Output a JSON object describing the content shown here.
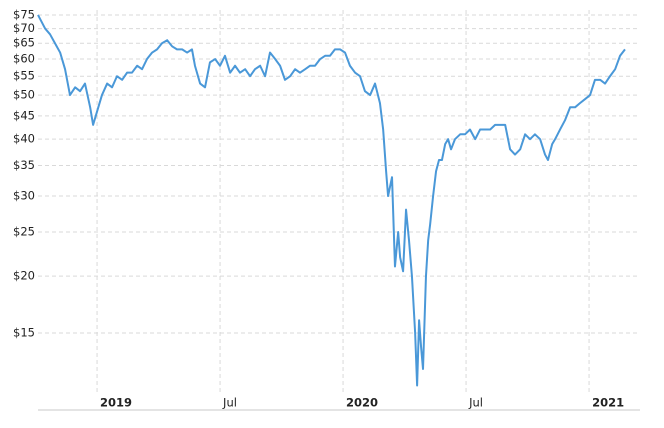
{
  "chart_data": {
    "type": "line",
    "yscale": "log",
    "grid": true,
    "color": "#4a98d8",
    "xlim": [
      2018.76,
      2021.207
    ],
    "xticks": [
      2019,
      {
        "value": 2019.5,
        "label": "Jul"
      },
      2020,
      {
        "value": 2020.5,
        "label": "Jul"
      },
      2021
    ],
    "ylim": [
      10.42,
      76.9
    ],
    "yticks": [
      {
        "value": 15,
        "label": "$15"
      },
      {
        "value": 20,
        "label": "$20"
      },
      {
        "value": 25,
        "label": "$25"
      },
      {
        "value": 30,
        "label": "$30"
      },
      {
        "value": 35,
        "label": "$35"
      },
      {
        "value": 40,
        "label": "$40"
      },
      {
        "value": 45,
        "label": "$45"
      },
      {
        "value": 50,
        "label": "$50"
      },
      {
        "value": 55,
        "label": "$55"
      },
      {
        "value": 60,
        "label": "$60"
      },
      {
        "value": 65,
        "label": "$65"
      },
      {
        "value": 70,
        "label": "$70"
      },
      {
        "value": 75,
        "label": "$75"
      }
    ],
    "x": [
      2018.76,
      2018.789,
      2018.809,
      2018.829,
      2018.85,
      2018.87,
      2018.89,
      2018.911,
      2018.931,
      2018.951,
      2018.972,
      2018.984,
      2019.0,
      2019.02,
      2019.041,
      2019.061,
      2019.081,
      2019.102,
      2019.122,
      2019.142,
      2019.163,
      2019.183,
      2019.203,
      2019.224,
      2019.244,
      2019.264,
      2019.285,
      2019.305,
      2019.325,
      2019.346,
      2019.366,
      2019.386,
      2019.398,
      2019.419,
      2019.439,
      2019.459,
      2019.48,
      2019.5,
      2019.52,
      2019.541,
      2019.561,
      2019.581,
      2019.602,
      2019.622,
      2019.642,
      2019.663,
      2019.683,
      2019.703,
      2019.724,
      2019.744,
      2019.764,
      2019.785,
      2019.805,
      2019.825,
      2019.846,
      2019.866,
      2019.886,
      2019.907,
      2019.927,
      2019.947,
      2019.967,
      2019.988,
      2020.008,
      2020.028,
      2020.049,
      2020.069,
      2020.089,
      2020.11,
      2020.13,
      2020.15,
      2020.163,
      2020.175,
      2020.183,
      2020.199,
      2020.211,
      2020.224,
      2020.232,
      2020.244,
      2020.256,
      2020.268,
      2020.28,
      2020.293,
      2020.301,
      2020.309,
      2020.317,
      2020.325,
      2020.337,
      2020.346,
      2020.354,
      2020.366,
      2020.378,
      2020.39,
      2020.402,
      2020.415,
      2020.427,
      2020.439,
      2020.455,
      2020.476,
      2020.496,
      2020.516,
      2020.537,
      2020.557,
      2020.577,
      2020.598,
      2020.618,
      2020.638,
      2020.659,
      2020.679,
      2020.699,
      2020.72,
      2020.74,
      2020.76,
      2020.78,
      2020.801,
      2020.821,
      2020.833,
      2020.85,
      2020.862,
      2020.882,
      2020.902,
      2020.923,
      2020.943,
      2020.963,
      2020.984,
      2021.004,
      2021.024,
      2021.045,
      2021.065,
      2021.085,
      2021.106,
      2021.126,
      2021.146
    ],
    "values": [
      75,
      70,
      68,
      65,
      62,
      57,
      50,
      52,
      51,
      53,
      47,
      43,
      46,
      50,
      53,
      52,
      55,
      54,
      56,
      56,
      58,
      57,
      60,
      62,
      63,
      65,
      66,
      64,
      63,
      63,
      62,
      63,
      58,
      53,
      52,
      59,
      60,
      58,
      61,
      56,
      58,
      56,
      57,
      55,
      57,
      58,
      55,
      62,
      60,
      58,
      54,
      55,
      57,
      56,
      57,
      58,
      58,
      60,
      61,
      61,
      63,
      63,
      62,
      58,
      56,
      55,
      51,
      50,
      53,
      48,
      42,
      34,
      30,
      33,
      21,
      25,
      22,
      20.5,
      28,
      24,
      20,
      15,
      11.5,
      16,
      14,
      12.5,
      20,
      24,
      26,
      30,
      34,
      36,
      36,
      39,
      40,
      38,
      40,
      41,
      41,
      42,
      40,
      42,
      42,
      42,
      43,
      43,
      43,
      38,
      37,
      38,
      41,
      40,
      41,
      40,
      37,
      36,
      39,
      40,
      42,
      44,
      47,
      47,
      48,
      49,
      50,
      54,
      54,
      53,
      55,
      57,
      61,
      63
    ]
  }
}
